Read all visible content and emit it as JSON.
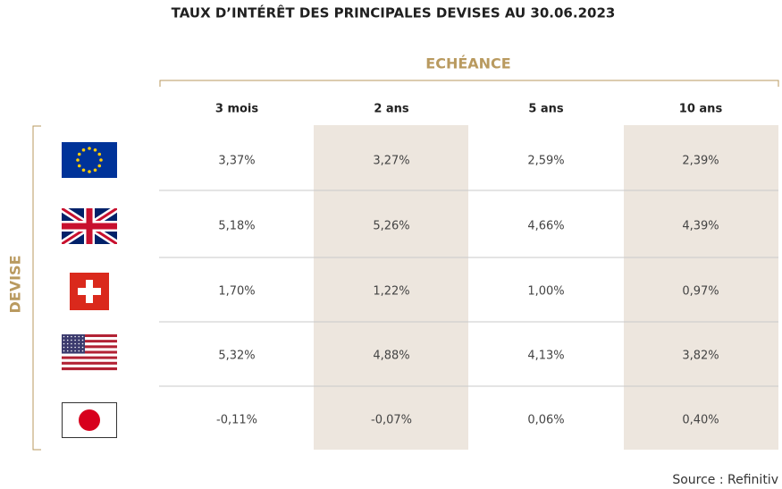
{
  "title": "TAUX D’INTÉRÊT DES PRINCIPALES DEVISES AU 30.06.2023",
  "column_group": "ECHÉANCE",
  "row_group": "DEVISE",
  "table": {
    "columns": [
      "3 mois",
      "2 ans",
      "5 ans",
      "10 ans"
    ],
    "rows": [
      [
        "3,37%",
        "3,27%",
        "2,59%",
        "2,39%"
      ],
      [
        "5,18%",
        "5,26%",
        "4,66%",
        "4,39%"
      ],
      [
        "1,70%",
        "1,22%",
        "1,00%",
        "0,97%"
      ],
      [
        "5,32%",
        "4,88%",
        "4,13%",
        "3,82%"
      ],
      [
        "-0,11%",
        "-0,07%",
        "0,06%",
        "0,40%"
      ]
    ]
  },
  "source": "Source : Refinitiv"
}
